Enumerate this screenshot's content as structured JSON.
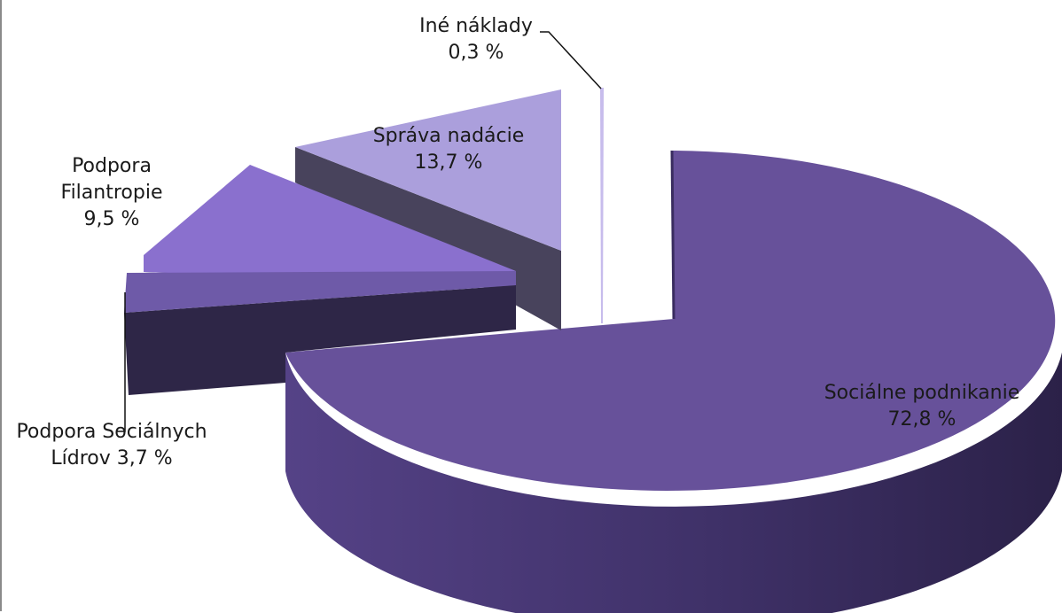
{
  "chart_data": {
    "type": "pie",
    "variant": "3d-exploded",
    "title": "",
    "slices": [
      {
        "name": "Sociálne podnikanie",
        "value": 72.8,
        "label_lines": [
          "Sociálne podnikanie",
          "72,8 %"
        ],
        "color": "#67519a"
      },
      {
        "name": "Podpora Sociálnych Lídrov",
        "value": 3.7,
        "label_lines": [
          "Podpora Sociálnych",
          "Lídrov 3,7 %"
        ],
        "color": "#6e5aa8"
      },
      {
        "name": "Podpora Filantropie",
        "value": 9.5,
        "label_lines": [
          "Podpora",
          "Filantropie",
          "9,5 %"
        ],
        "color": "#8a70ce"
      },
      {
        "name": "Správa nadácie",
        "value": 13.7,
        "label_lines": [
          "Správa nadácie",
          "13,7 %"
        ],
        "color": "#ab9fdc"
      },
      {
        "name": "Iné náklady",
        "value": 0.3,
        "label_lines": [
          "Iné náklady",
          "0,3 %"
        ],
        "color": "#c7bcec"
      }
    ]
  }
}
